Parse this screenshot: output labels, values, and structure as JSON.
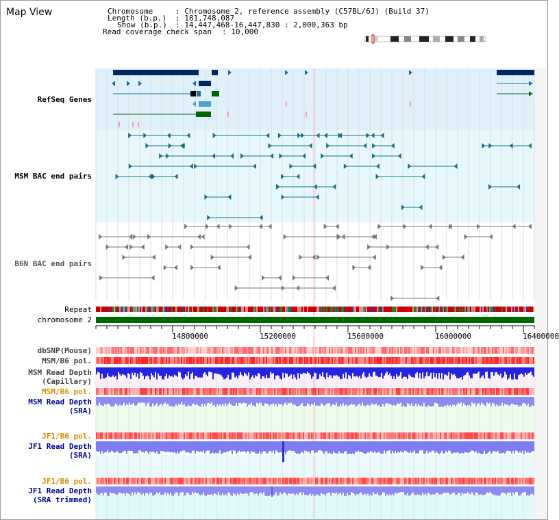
{
  "view_title": "Map View",
  "info": {
    "chromosome_label": "Chromosome",
    "chromosome_value": ": Chromosome 2, reference assembly (C57BL/6J) (Build 37)",
    "length_label": "Length (b.p.)",
    "length_value": ": 181,748,087",
    "show_label": "Show (b.p.)",
    "show_value": ": 14,447,468-16,447,830 : 2,000,363 bp",
    "coverage_label": "Read coverage check span",
    "coverage_value": ": 10,000"
  },
  "tracks": {
    "refseq": "RefSeq Genes",
    "msm_bac": "MSM BAC end pairs",
    "b6n_bac": "B6N BAC end pairs",
    "repeat": "Repeat",
    "chromosome": "chromosome 2",
    "dbsnp": "dbSNP(Mouse)",
    "msm_b6_pol": "MSM/B6 pol.",
    "msm_depth_cap_1": "MSM Read Depth",
    "msm_depth_cap_2": "(Capillary)",
    "msm_b6_pol_2": "MSM/B6 pol.",
    "msm_depth_sra_1": "MSM Read Depth",
    "msm_depth_sra_2": "(SRA)",
    "jf1_b6_pol": "JF1/B6 pol.",
    "jf1_depth_sra_1": "JF1 Read Depth",
    "jf1_depth_sra_2": "(SRA)",
    "jf1_b6_pol_2": "JF1/B6 pol.",
    "jf1_depth_trim_1": "JF1 Read Depth",
    "jf1_depth_trim_2": "(SRA trimmed)"
  },
  "ruler": {
    "ticks": [
      "14800000",
      "15200000",
      "15600000",
      "16000000",
      "16400000"
    ]
  },
  "colors": {
    "refseq_bg": "#dff0fb",
    "msm_bg": "#e6f8fb",
    "b6n_bg": "#ffffff",
    "gene_dark": "#00285f",
    "gene_mid": "#1f6f9f",
    "gene_green": "#006600",
    "bac_teal": "#1a6f86",
    "bac_gray": "#777777",
    "chromosome_bar": "#006600",
    "depth_blue": "#2424e0",
    "depth_lavender": "#8c8cf0",
    "label_blue": "#000099",
    "label_orange": "#d88a00",
    "label_teal": "#0a5a80"
  }
}
